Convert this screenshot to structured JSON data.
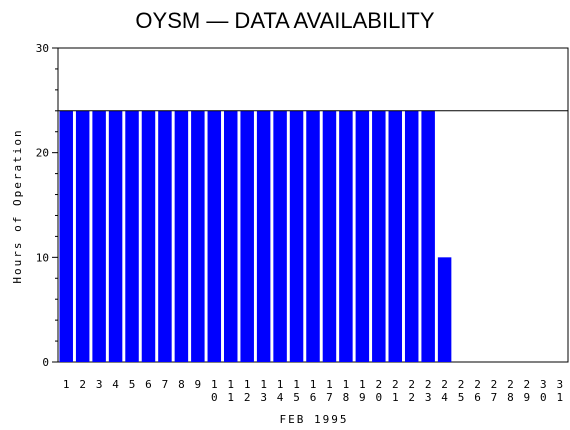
{
  "chart_data": {
    "type": "bar",
    "title": "OYSM — DATA AVAILABILITY",
    "xlabel": "FEB 1995",
    "ylabel": "Hours of Operation",
    "ylim": [
      0,
      30
    ],
    "yticks": [
      "0",
      "10",
      "20",
      "30"
    ],
    "reference_line": 24,
    "grid": false,
    "bar_color": "#0000ff",
    "categories": [
      "1",
      "2",
      "3",
      "4",
      "5",
      "6",
      "7",
      "8",
      "9",
      "10",
      "11",
      "12",
      "13",
      "14",
      "15",
      "16",
      "17",
      "18",
      "19",
      "20",
      "21",
      "22",
      "23",
      "24",
      "25",
      "26",
      "27",
      "28",
      "29",
      "30",
      "31"
    ],
    "values": [
      24,
      24,
      24,
      24,
      24,
      24,
      24,
      24,
      24,
      24,
      24,
      24,
      24,
      24,
      24,
      24,
      24,
      24,
      24,
      24,
      24,
      24,
      24,
      10,
      0,
      0,
      0,
      0,
      0,
      0,
      0
    ]
  }
}
